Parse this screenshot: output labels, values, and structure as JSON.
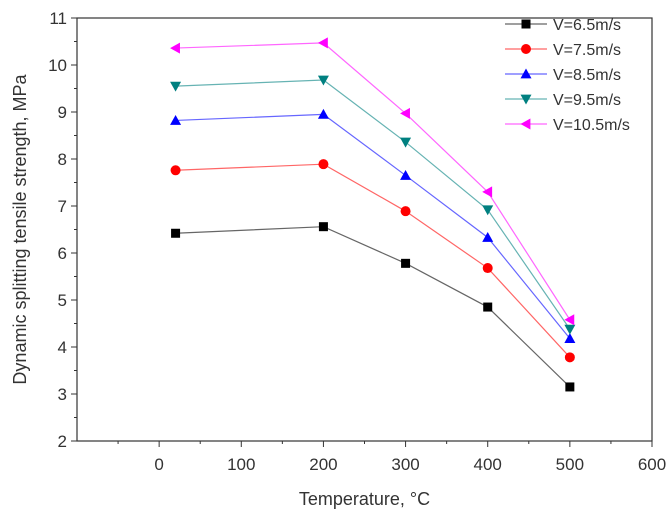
{
  "chart_data": {
    "type": "line",
    "xlabel": "Temperature, °C",
    "ylabel": "Dynamic splitting tensile strength, MPa",
    "xlim": [
      -100,
      600
    ],
    "ylim": [
      2,
      11
    ],
    "xticks": [
      0,
      100,
      200,
      300,
      400,
      500,
      600
    ],
    "yticks": [
      2,
      3,
      4,
      5,
      6,
      7,
      8,
      9,
      10,
      11
    ],
    "grid": false,
    "legend_position": "top-right",
    "x": [
      20,
      200,
      300,
      400,
      500
    ],
    "series": [
      {
        "name": "V=6.5m/s",
        "marker": "square",
        "color": "#000000",
        "line_color": "#666666",
        "values": [
          6.42,
          6.56,
          5.78,
          4.85,
          3.15
        ]
      },
      {
        "name": "V=7.5m/s",
        "marker": "circle",
        "color": "#ff0000",
        "line_color": "#ff6666",
        "values": [
          7.76,
          7.89,
          6.89,
          5.68,
          3.78
        ]
      },
      {
        "name": "V=8.5m/s",
        "marker": "triangle-up",
        "color": "#0000ff",
        "line_color": "#6666ff",
        "values": [
          8.82,
          8.95,
          7.65,
          6.33,
          4.18
        ]
      },
      {
        "name": "V=9.5m/s",
        "marker": "triangle-down",
        "color": "#008080",
        "line_color": "#66b3b3",
        "values": [
          9.55,
          9.68,
          8.36,
          6.92,
          4.38
        ]
      },
      {
        "name": "V=10.5m/s",
        "marker": "triangle-left",
        "color": "#ff00ff",
        "line_color": "#ff66ff",
        "values": [
          10.36,
          10.47,
          8.97,
          7.3,
          4.58
        ]
      }
    ]
  }
}
